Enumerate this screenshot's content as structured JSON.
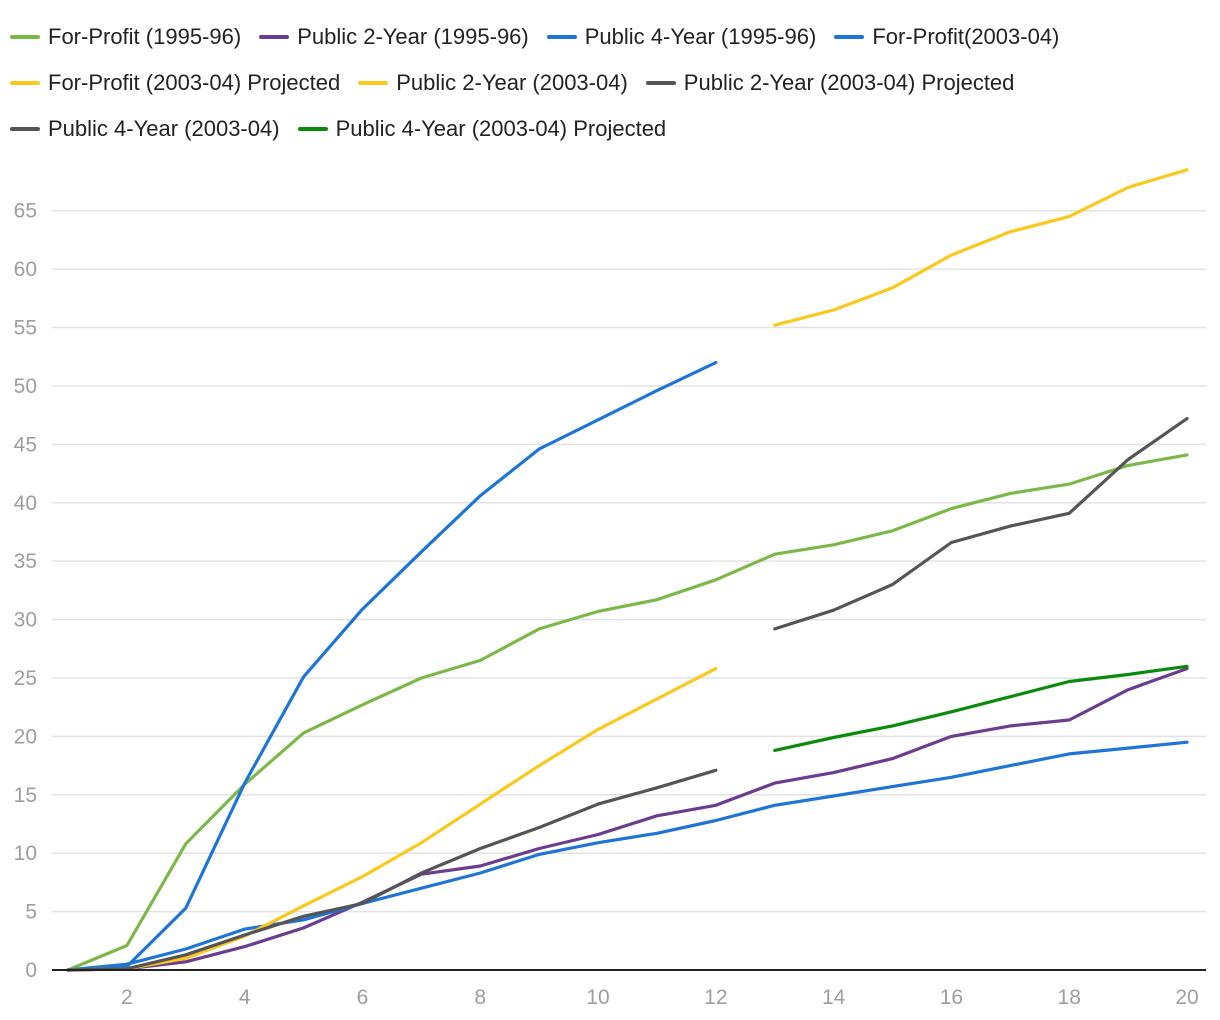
{
  "chart_data": {
    "type": "line",
    "title": "",
    "xlabel": "",
    "ylabel": "",
    "x": [
      1,
      2,
      3,
      4,
      5,
      6,
      7,
      8,
      9,
      10,
      11,
      12,
      13,
      14,
      15,
      16,
      17,
      18,
      19,
      20
    ],
    "xlim": [
      1,
      20
    ],
    "ylim": [
      0,
      69
    ],
    "x_ticks": [
      2,
      4,
      6,
      8,
      10,
      12,
      14,
      16,
      18,
      20
    ],
    "y_ticks": [
      0,
      5,
      10,
      15,
      20,
      25,
      30,
      35,
      40,
      45,
      50,
      55,
      60,
      65
    ],
    "grid": "horizontal",
    "legend_position": "top",
    "series": [
      {
        "name": "For-Profit (1995-96)",
        "color": "#7cb848",
        "values": [
          0,
          2.1,
          10.8,
          15.9,
          20.3,
          22.7,
          25.0,
          26.5,
          29.2,
          30.7,
          31.7,
          33.4,
          35.6,
          36.4,
          37.6,
          39.5,
          40.8,
          41.6,
          43.2,
          44.1
        ]
      },
      {
        "name": "Public 2-Year (1995-96)",
        "color": "#6a3d8f",
        "values": [
          0,
          0.1,
          0.7,
          2.0,
          3.6,
          5.8,
          8.2,
          8.9,
          10.4,
          11.6,
          13.2,
          14.1,
          16.0,
          16.9,
          18.1,
          20.0,
          20.9,
          21.4,
          24.0,
          25.8
        ]
      },
      {
        "name": "Public 4-Year (1995-96)",
        "color": "#1f75d6",
        "values": [
          0,
          0.5,
          1.8,
          3.5,
          4.3,
          5.7,
          7.0,
          8.3,
          9.9,
          10.9,
          11.7,
          12.8,
          14.1,
          14.9,
          15.7,
          16.5,
          17.5,
          18.5,
          19.0,
          19.5
        ]
      },
      {
        "name": "For-Profit(2003-04)",
        "color": "#1f75d6",
        "values": [
          0,
          0.3,
          5.3,
          16.0,
          25.1,
          30.9,
          35.8,
          40.6,
          44.6,
          47.1,
          49.6,
          52.0,
          null,
          null,
          null,
          null,
          null,
          null,
          null,
          null
        ]
      },
      {
        "name": "For-Profit (2003-04) Projected",
        "color": "#f9c91c",
        "values": [
          null,
          null,
          null,
          null,
          null,
          null,
          null,
          null,
          null,
          null,
          null,
          null,
          55.2,
          56.5,
          58.4,
          61.2,
          63.2,
          64.5,
          67.0,
          68.5
        ]
      },
      {
        "name": "Public 2-Year (2003-04)",
        "color": "#f9c91c",
        "values": [
          0,
          0.1,
          1.0,
          2.9,
          5.5,
          8.0,
          10.9,
          14.2,
          17.5,
          20.6,
          23.2,
          25.8,
          null,
          null,
          null,
          null,
          null,
          null,
          null,
          null
        ]
      },
      {
        "name": "Public 2-Year (2003-04) Projected",
        "color": "#555555",
        "values": [
          null,
          null,
          null,
          null,
          null,
          null,
          null,
          null,
          null,
          null,
          null,
          null,
          29.2,
          30.8,
          33.0,
          36.6,
          38.0,
          39.1,
          43.7,
          47.2
        ]
      },
      {
        "name": "Public 4-Year (2003-04)",
        "color": "#555555",
        "values": [
          0,
          0.1,
          1.3,
          3.0,
          4.6,
          5.7,
          8.3,
          10.4,
          12.2,
          14.2,
          15.6,
          17.1,
          null,
          null,
          null,
          null,
          null,
          null,
          null,
          null
        ]
      },
      {
        "name": "Public 4-Year (2003-04) Projected",
        "color": "#0b8a0b",
        "values": [
          null,
          null,
          null,
          null,
          null,
          null,
          null,
          null,
          null,
          null,
          null,
          null,
          18.8,
          19.9,
          20.9,
          22.1,
          23.4,
          24.7,
          25.3,
          26.0
        ]
      }
    ]
  }
}
